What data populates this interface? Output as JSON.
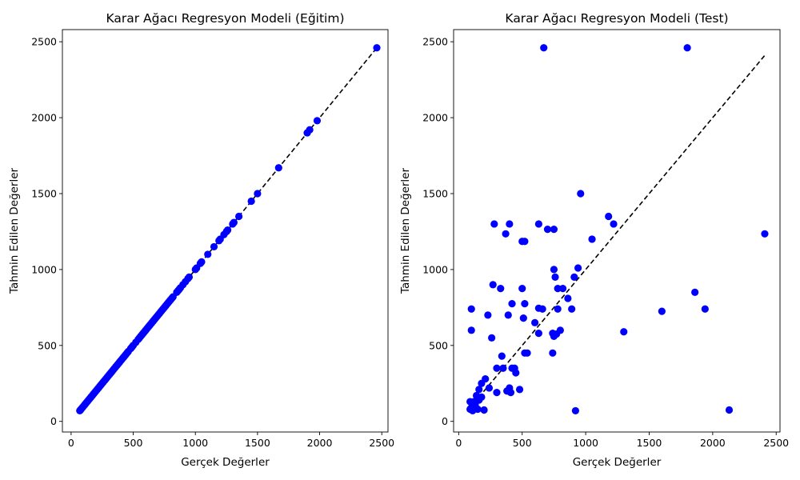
{
  "chart_data": [
    {
      "type": "scatter",
      "title": "Karar Ağacı Regresyon Modeli (Eğitim)",
      "xlabel": "Gerçek Değerler",
      "ylabel": "Tahmin Edilen Değerler",
      "xlim": [
        -70,
        2550
      ],
      "ylim": [
        -70,
        2580
      ],
      "xticks": [
        0,
        500,
        1000,
        1500,
        2000,
        2500
      ],
      "yticks": [
        0,
        500,
        1000,
        1500,
        2000,
        2500
      ],
      "marker_color": "#0000ff",
      "reference_line": {
        "style": "dashed",
        "color": "#000000",
        "from": [
          70,
          70
        ],
        "to": [
          2460,
          2460
        ]
      },
      "points": {
        "x": [
          70,
          75,
          80,
          90,
          100,
          110,
          120,
          130,
          140,
          150,
          160,
          170,
          180,
          190,
          200,
          210,
          220,
          230,
          240,
          250,
          260,
          270,
          280,
          290,
          300,
          310,
          320,
          330,
          340,
          350,
          360,
          370,
          380,
          390,
          400,
          410,
          420,
          430,
          440,
          450,
          460,
          480,
          490,
          500,
          520,
          540,
          550,
          560,
          570,
          580,
          590,
          600,
          610,
          620,
          630,
          640,
          650,
          660,
          670,
          680,
          690,
          700,
          710,
          720,
          730,
          740,
          750,
          760,
          770,
          780,
          790,
          800,
          810,
          820,
          850,
          860,
          870,
          880,
          900,
          920,
          940,
          950,
          1000,
          1010,
          1040,
          1050,
          1100,
          1150,
          1190,
          1200,
          1230,
          1250,
          1260,
          1300,
          1310,
          1350,
          1450,
          1500,
          1670,
          1900,
          1920,
          1980,
          2460
        ],
        "y": [
          70,
          75,
          80,
          90,
          100,
          110,
          120,
          130,
          140,
          150,
          160,
          170,
          180,
          190,
          200,
          210,
          220,
          230,
          240,
          250,
          260,
          270,
          280,
          290,
          300,
          310,
          320,
          330,
          340,
          350,
          360,
          370,
          380,
          390,
          400,
          410,
          420,
          430,
          440,
          450,
          460,
          480,
          490,
          500,
          520,
          540,
          550,
          560,
          570,
          580,
          590,
          600,
          610,
          620,
          630,
          640,
          650,
          660,
          670,
          680,
          690,
          700,
          710,
          720,
          730,
          740,
          750,
          760,
          770,
          780,
          790,
          800,
          810,
          820,
          850,
          860,
          870,
          880,
          900,
          920,
          940,
          950,
          1000,
          1010,
          1040,
          1050,
          1100,
          1150,
          1190,
          1200,
          1230,
          1250,
          1260,
          1300,
          1310,
          1350,
          1450,
          1500,
          1670,
          1900,
          1920,
          1980,
          2460
        ]
      }
    },
    {
      "type": "scatter",
      "title": "Karar Ağacı Regresyon Modeli (Test)",
      "xlabel": "Gerçek Değerler",
      "ylabel": "Tahmin Edilen Değerler",
      "xlim": [
        -40,
        2530
      ],
      "ylim": [
        -70,
        2580
      ],
      "xticks": [
        0,
        500,
        1000,
        1500,
        2000,
        2500
      ],
      "yticks": [
        0,
        500,
        1000,
        1500,
        2000,
        2500
      ],
      "marker_color": "#0000ff",
      "reference_line": {
        "style": "dashed",
        "color": "#000000",
        "from": [
          80,
          80
        ],
        "to": [
          2410,
          2410
        ]
      },
      "points": {
        "x": [
          670,
          1800,
          960,
          280,
          400,
          630,
          1180,
          370,
          500,
          520,
          700,
          750,
          1220,
          1050,
          2410,
          750,
          940,
          760,
          910,
          270,
          330,
          500,
          780,
          820,
          860,
          1860,
          1940,
          420,
          520,
          630,
          660,
          780,
          890,
          390,
          510,
          600,
          800,
          100,
          1600,
          1300,
          230,
          630,
          750,
          740,
          770,
          260,
          340,
          440,
          450,
          520,
          540,
          740,
          300,
          350,
          420,
          210,
          180,
          160,
          240,
          300,
          380,
          400,
          410,
          480,
          140,
          160,
          180,
          120,
          90,
          100,
          110,
          130,
          150,
          200,
          920,
          2130,
          90,
          100
        ],
        "y": [
          2460,
          2460,
          1500,
          1300,
          1300,
          1300,
          1350,
          1235,
          1185,
          1185,
          1265,
          1265,
          1300,
          1200,
          1235,
          1000,
          1010,
          950,
          950,
          900,
          875,
          875,
          875,
          875,
          810,
          850,
          740,
          775,
          775,
          745,
          740,
          740,
          740,
          700,
          680,
          650,
          600,
          740,
          725,
          590,
          700,
          580,
          560,
          580,
          575,
          550,
          430,
          350,
          320,
          450,
          450,
          450,
          350,
          350,
          350,
          280,
          250,
          210,
          220,
          190,
          200,
          220,
          190,
          210,
          170,
          140,
          160,
          130,
          80,
          90,
          70,
          110,
          80,
          75,
          70,
          75,
          130,
          600
        ]
      }
    }
  ]
}
